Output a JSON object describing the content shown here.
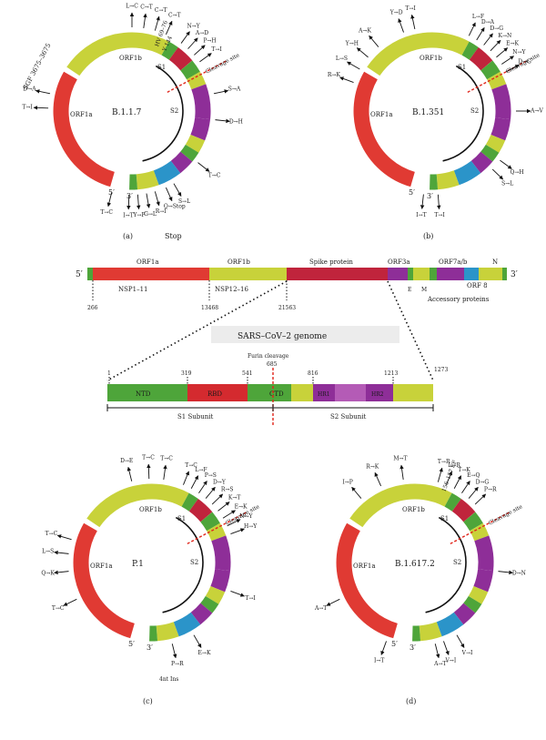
{
  "colors": {
    "orf1a": "#e03a33",
    "orf1b": "#c8d23a",
    "spike": "#c0243c",
    "green": "#4ea53a",
    "purple": "#8e2e98",
    "blue": "#2b94c9",
    "cleavage": "#e1251b"
  },
  "panels": [
    {
      "id": "a",
      "lineage": "B.1.1.7",
      "caption": "(a)",
      "orf1a": "ORF1a",
      "orf1b": "ORF1b",
      "s1": "S1",
      "s2": "S2",
      "cleavage": "Cleavage site",
      "five": "5′",
      "three": "3′",
      "extra": {
        "sgf": "SGF 3675–3675",
        "hv": "HV 69–76",
        "y144": "Y 144",
        "stop": "Stop"
      },
      "muts": [
        "T→I",
        "D→A",
        "I→T",
        "T→C",
        "L→C",
        "C→T",
        "C→T",
        "C→T",
        "N→Y",
        "A→D",
        "P→H",
        "T→I",
        "S→A",
        "D→H",
        "T→C",
        "S→L",
        "Q→Stop",
        "R→I",
        "G→L",
        "Y→F"
      ]
    },
    {
      "id": "b",
      "lineage": "B.1.351",
      "caption": "(b)",
      "orf1a": "ORF1a",
      "orf1b": "ORF1b",
      "s1": "S1",
      "s2": "S2",
      "cleavage": "Cleavage site",
      "five": "5′",
      "three": "3′",
      "muts": [
        "R→K",
        "L→S",
        "Y→H",
        "A→K",
        "I→T",
        "Y→D",
        "T→I",
        "L→F",
        "D→A",
        "D→G",
        "K→N",
        "E→K",
        "N→Y",
        "D→G",
        "A→V",
        "Q→H",
        "S→L",
        "T→I"
      ]
    },
    {
      "id": "c",
      "lineage": "P.1",
      "caption": "(c)",
      "orf1a": "ORF1a",
      "orf1b": "ORF1b",
      "s1": "S1",
      "s2": "S2",
      "cleavage": "Cleavage site",
      "five": "5′",
      "three": "3′",
      "extra": {
        "ins": "4nt Ins"
      },
      "muts": [
        "D→E",
        "T→C",
        "T→C",
        "T→C",
        "L→F",
        "P→S",
        "D→Y",
        "R→S",
        "K→T",
        "E→K",
        "N→Y",
        "H→Y",
        "T→I",
        "T→C",
        "Q→K",
        "L→S",
        "T→C",
        "P→R",
        "E→K"
      ]
    },
    {
      "id": "d",
      "lineage": "B.1.617.2",
      "caption": "(d)",
      "orf1a": "ORF1a",
      "orf1b": "ORF1b",
      "s1": "S1",
      "s2": "S2",
      "cleavage": "Cleavage site",
      "five": "5′",
      "three": "3′",
      "extra": {
        "ef": "156–157 EF"
      },
      "muts": [
        "I→P",
        "R→K",
        "M→T",
        "T→R",
        "L→R",
        "T→K",
        "E→Q",
        "D→G",
        "P→R",
        "D→N",
        "A→T",
        "I→T",
        "V→I",
        "V→I",
        "A→T"
      ]
    }
  ],
  "genome": {
    "five": "5′",
    "three": "3′",
    "orf1a": "ORF1a",
    "orf1b": "ORF1b",
    "spike": "Spike protein",
    "orf3a": "ORF3a",
    "orf7": "ORF7a/b",
    "n": "N",
    "e": "E",
    "m": "M",
    "orf8": "ORF 8",
    "nsp1": "NSP1–11",
    "nsp12": "NSP12–16",
    "accessory": "Accessory proteins",
    "pos266": "266",
    "pos13468": "13468",
    "pos21563": "21563",
    "title": "SARS–CoV–2 genome"
  },
  "spike": {
    "furin": "Furin cleavage",
    "p1": "1",
    "p319": "319",
    "p541": "541",
    "p685": "685",
    "p816": "816",
    "p1213": "1213",
    "p1273": "1273",
    "ntd": "NTD",
    "rbd": "RBD",
    "ctd": "CTD",
    "hr1": "HR1",
    "hr2": "HR2",
    "s1sub": "S1 Subunit",
    "s2sub": "S2 Subunit"
  }
}
